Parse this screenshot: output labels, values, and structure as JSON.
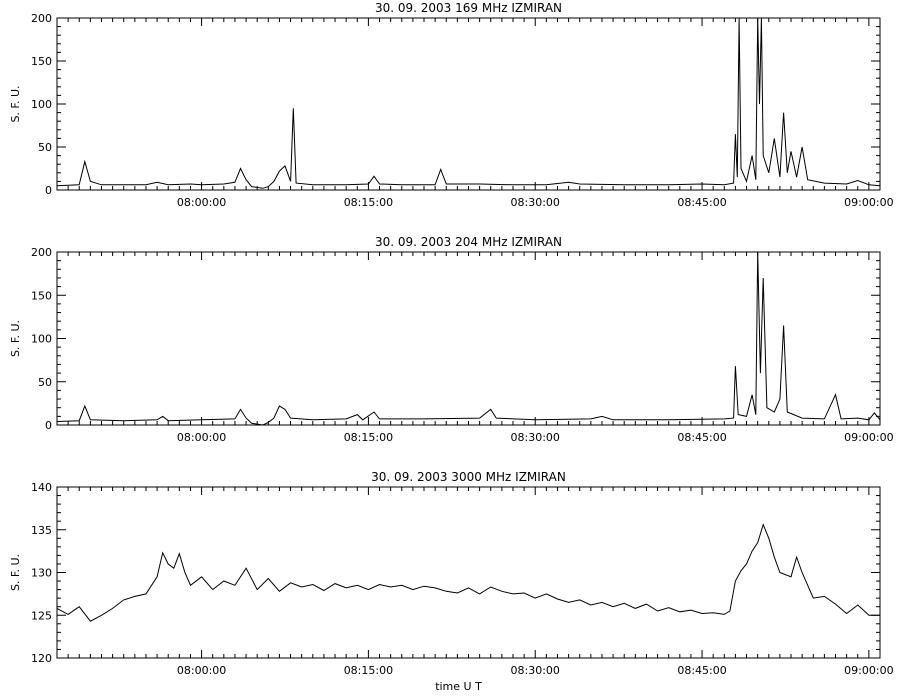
{
  "chart_data": [
    {
      "type": "line",
      "title": "30. 09. 2003   169 MHz    IZMIRAN",
      "ylabel": "S. F. U.",
      "xlabel": "",
      "xlim": [
        "07:47:00",
        "09:01:00"
      ],
      "ylim": [
        0,
        200
      ],
      "yticks": [
        0,
        50,
        100,
        150,
        200
      ],
      "xticks": [
        "08:00:00",
        "08:15:00",
        "08:30:00",
        "08:45:00",
        "09:00:00"
      ],
      "series": [
        {
          "points": [
            [
              "07:47:00",
              5
            ],
            [
              "07:49:00",
              6
            ],
            [
              "07:49:30",
              33
            ],
            [
              "07:50:00",
              10
            ],
            [
              "07:51:00",
              6
            ],
            [
              "07:55:00",
              6
            ],
            [
              "07:56:00",
              9
            ],
            [
              "07:57:00",
              6
            ],
            [
              "07:59:00",
              7
            ],
            [
              "08:00:00",
              6
            ],
            [
              "08:02:00",
              7
            ],
            [
              "08:03:00",
              9
            ],
            [
              "08:03:30",
              25
            ],
            [
              "08:04:00",
              12
            ],
            [
              "08:04:30",
              4
            ],
            [
              "08:05:30",
              2
            ],
            [
              "08:06:00",
              4
            ],
            [
              "08:06:30",
              10
            ],
            [
              "08:07:00",
              22
            ],
            [
              "08:07:30",
              28
            ],
            [
              "08:08:00",
              10
            ],
            [
              "08:08:15",
              95
            ],
            [
              "08:08:30",
              8
            ],
            [
              "08:10:00",
              6
            ],
            [
              "08:13:00",
              6
            ],
            [
              "08:15:00",
              7
            ],
            [
              "08:15:30",
              16
            ],
            [
              "08:16:00",
              7
            ],
            [
              "08:18:00",
              6
            ],
            [
              "08:21:00",
              6
            ],
            [
              "08:21:30",
              24
            ],
            [
              "08:22:00",
              7
            ],
            [
              "08:25:00",
              7
            ],
            [
              "08:28:00",
              6
            ],
            [
              "08:31:00",
              6
            ],
            [
              "08:33:00",
              9
            ],
            [
              "08:34:00",
              7
            ],
            [
              "08:38:00",
              6
            ],
            [
              "08:42:00",
              6
            ],
            [
              "08:45:00",
              7
            ],
            [
              "08:47:00",
              6
            ],
            [
              "08:47:50",
              8
            ],
            [
              "08:48:00",
              65
            ],
            [
              "08:48:10",
              15
            ],
            [
              "08:48:20",
              200
            ],
            [
              "08:48:30",
              25
            ],
            [
              "08:49:00",
              10
            ],
            [
              "08:49:30",
              40
            ],
            [
              "08:49:50",
              12
            ],
            [
              "08:50:00",
              200
            ],
            [
              "08:50:10",
              100
            ],
            [
              "08:50:20",
              200
            ],
            [
              "08:50:30",
              40
            ],
            [
              "08:51:00",
              20
            ],
            [
              "08:51:30",
              60
            ],
            [
              "08:52:00",
              15
            ],
            [
              "08:52:20",
              90
            ],
            [
              "08:52:40",
              20
            ],
            [
              "08:53:00",
              45
            ],
            [
              "08:53:30",
              15
            ],
            [
              "08:54:00",
              50
            ],
            [
              "08:54:30",
              12
            ],
            [
              "08:56:00",
              8
            ],
            [
              "08:58:00",
              7
            ],
            [
              "08:59:00",
              11
            ],
            [
              "09:00:00",
              6
            ],
            [
              "09:01:00",
              5
            ]
          ]
        }
      ]
    },
    {
      "type": "line",
      "title": "30. 09. 2003   204 MHz    IZMIRAN",
      "ylabel": "S. F. U.",
      "xlabel": "",
      "xlim": [
        "07:47:00",
        "09:01:00"
      ],
      "ylim": [
        0,
        200
      ],
      "yticks": [
        0,
        50,
        100,
        150,
        200
      ],
      "xticks": [
        "08:00:00",
        "08:15:00",
        "08:30:00",
        "08:45:00",
        "09:00:00"
      ],
      "series": [
        {
          "points": [
            [
              "07:47:00",
              4
            ],
            [
              "07:49:00",
              5
            ],
            [
              "07:49:30",
              22
            ],
            [
              "07:50:00",
              6
            ],
            [
              "07:53:00",
              5
            ],
            [
              "07:56:00",
              6
            ],
            [
              "07:56:30",
              10
            ],
            [
              "07:57:00",
              5
            ],
            [
              "08:00:00",
              6
            ],
            [
              "08:03:00",
              7
            ],
            [
              "08:03:30",
              18
            ],
            [
              "08:04:00",
              8
            ],
            [
              "08:04:30",
              2
            ],
            [
              "08:05:30",
              0
            ],
            [
              "08:06:00",
              3
            ],
            [
              "08:06:30",
              8
            ],
            [
              "08:07:00",
              22
            ],
            [
              "08:07:30",
              18
            ],
            [
              "08:08:00",
              8
            ],
            [
              "08:10:00",
              6
            ],
            [
              "08:13:00",
              7
            ],
            [
              "08:14:00",
              12
            ],
            [
              "08:14:30",
              6
            ],
            [
              "08:15:30",
              15
            ],
            [
              "08:16:00",
              7
            ],
            [
              "08:20:00",
              7
            ],
            [
              "08:25:00",
              8
            ],
            [
              "08:26:00",
              18
            ],
            [
              "08:26:30",
              8
            ],
            [
              "08:30:00",
              6
            ],
            [
              "08:35:00",
              7
            ],
            [
              "08:36:00",
              10
            ],
            [
              "08:37:00",
              6
            ],
            [
              "08:42:00",
              6
            ],
            [
              "08:47:00",
              7
            ],
            [
              "08:47:50",
              8
            ],
            [
              "08:48:00",
              68
            ],
            [
              "08:48:15",
              12
            ],
            [
              "08:49:00",
              10
            ],
            [
              "08:49:30",
              35
            ],
            [
              "08:49:50",
              12
            ],
            [
              "08:50:00",
              200
            ],
            [
              "08:50:15",
              60
            ],
            [
              "08:50:30",
              170
            ],
            [
              "08:50:50",
              20
            ],
            [
              "08:51:30",
              15
            ],
            [
              "08:52:00",
              30
            ],
            [
              "08:52:20",
              115
            ],
            [
              "08:52:40",
              15
            ],
            [
              "08:54:00",
              8
            ],
            [
              "08:56:00",
              7
            ],
            [
              "08:57:00",
              35
            ],
            [
              "08:57:30",
              7
            ],
            [
              "08:59:00",
              8
            ],
            [
              "09:00:00",
              6
            ],
            [
              "09:00:30",
              14
            ],
            [
              "09:01:00",
              6
            ]
          ]
        }
      ]
    },
    {
      "type": "line",
      "title": "30. 09. 2003   3000 MHz    IZMIRAN",
      "ylabel": "S. F. U.",
      "xlabel": "time  U T",
      "xlim": [
        "07:47:00",
        "09:01:00"
      ],
      "ylim": [
        120,
        140
      ],
      "yticks": [
        120,
        125,
        130,
        135,
        140
      ],
      "xticks": [
        "08:00:00",
        "08:15:00",
        "08:30:00",
        "08:45:00",
        "09:00:00"
      ],
      "series": [
        {
          "points": [
            [
              "07:47:00",
              125.8
            ],
            [
              "07:48:00",
              125.1
            ],
            [
              "07:49:00",
              126.0
            ],
            [
              "07:50:00",
              124.3
            ],
            [
              "07:51:00",
              125.0
            ],
            [
              "07:52:00",
              125.8
            ],
            [
              "07:53:00",
              126.8
            ],
            [
              "07:54:00",
              127.2
            ],
            [
              "07:55:00",
              127.5
            ],
            [
              "07:56:00",
              129.5
            ],
            [
              "07:56:30",
              132.3
            ],
            [
              "07:57:00",
              131.0
            ],
            [
              "07:57:30",
              130.5
            ],
            [
              "07:58:00",
              132.2
            ],
            [
              "07:58:30",
              130.0
            ],
            [
              "07:59:00",
              128.5
            ],
            [
              "08:00:00",
              129.5
            ],
            [
              "08:01:00",
              128.0
            ],
            [
              "08:02:00",
              129.0
            ],
            [
              "08:03:00",
              128.5
            ],
            [
              "08:04:00",
              130.5
            ],
            [
              "08:05:00",
              128.0
            ],
            [
              "08:06:00",
              129.3
            ],
            [
              "08:07:00",
              127.8
            ],
            [
              "08:08:00",
              128.8
            ],
            [
              "08:09:00",
              128.3
            ],
            [
              "08:10:00",
              128.6
            ],
            [
              "08:11:00",
              127.9
            ],
            [
              "08:12:00",
              128.7
            ],
            [
              "08:13:00",
              128.2
            ],
            [
              "08:14:00",
              128.5
            ],
            [
              "08:15:00",
              128.0
            ],
            [
              "08:16:00",
              128.6
            ],
            [
              "08:17:00",
              128.3
            ],
            [
              "08:18:00",
              128.5
            ],
            [
              "08:19:00",
              128.0
            ],
            [
              "08:20:00",
              128.4
            ],
            [
              "08:21:00",
              128.2
            ],
            [
              "08:22:00",
              127.8
            ],
            [
              "08:23:00",
              127.6
            ],
            [
              "08:24:00",
              128.2
            ],
            [
              "08:25:00",
              127.5
            ],
            [
              "08:26:00",
              128.3
            ],
            [
              "08:27:00",
              127.8
            ],
            [
              "08:28:00",
              127.5
            ],
            [
              "08:29:00",
              127.6
            ],
            [
              "08:30:00",
              127.0
            ],
            [
              "08:31:00",
              127.5
            ],
            [
              "08:32:00",
              126.9
            ],
            [
              "08:33:00",
              126.5
            ],
            [
              "08:34:00",
              126.8
            ],
            [
              "08:35:00",
              126.2
            ],
            [
              "08:36:00",
              126.5
            ],
            [
              "08:37:00",
              126.0
            ],
            [
              "08:38:00",
              126.4
            ],
            [
              "08:39:00",
              125.8
            ],
            [
              "08:40:00",
              126.3
            ],
            [
              "08:41:00",
              125.5
            ],
            [
              "08:42:00",
              125.9
            ],
            [
              "08:43:00",
              125.4
            ],
            [
              "08:44:00",
              125.6
            ],
            [
              "08:45:00",
              125.2
            ],
            [
              "08:46:00",
              125.3
            ],
            [
              "08:47:00",
              125.1
            ],
            [
              "08:47:30",
              125.5
            ],
            [
              "08:48:00",
              129.0
            ],
            [
              "08:48:30",
              130.2
            ],
            [
              "08:49:00",
              131.0
            ],
            [
              "08:49:30",
              132.5
            ],
            [
              "08:50:00",
              133.5
            ],
            [
              "08:50:30",
              135.6
            ],
            [
              "08:51:00",
              134.0
            ],
            [
              "08:51:30",
              131.8
            ],
            [
              "08:52:00",
              130.0
            ],
            [
              "08:53:00",
              129.5
            ],
            [
              "08:53:30",
              131.8
            ],
            [
              "08:54:00",
              130.0
            ],
            [
              "08:54:30",
              128.5
            ],
            [
              "08:55:00",
              127.0
            ],
            [
              "08:56:00",
              127.2
            ],
            [
              "08:57:00",
              126.3
            ],
            [
              "08:58:00",
              125.2
            ],
            [
              "08:59:00",
              126.2
            ],
            [
              "09:00:00",
              125.0
            ],
            [
              "09:01:00",
              125.0
            ]
          ]
        }
      ]
    }
  ]
}
